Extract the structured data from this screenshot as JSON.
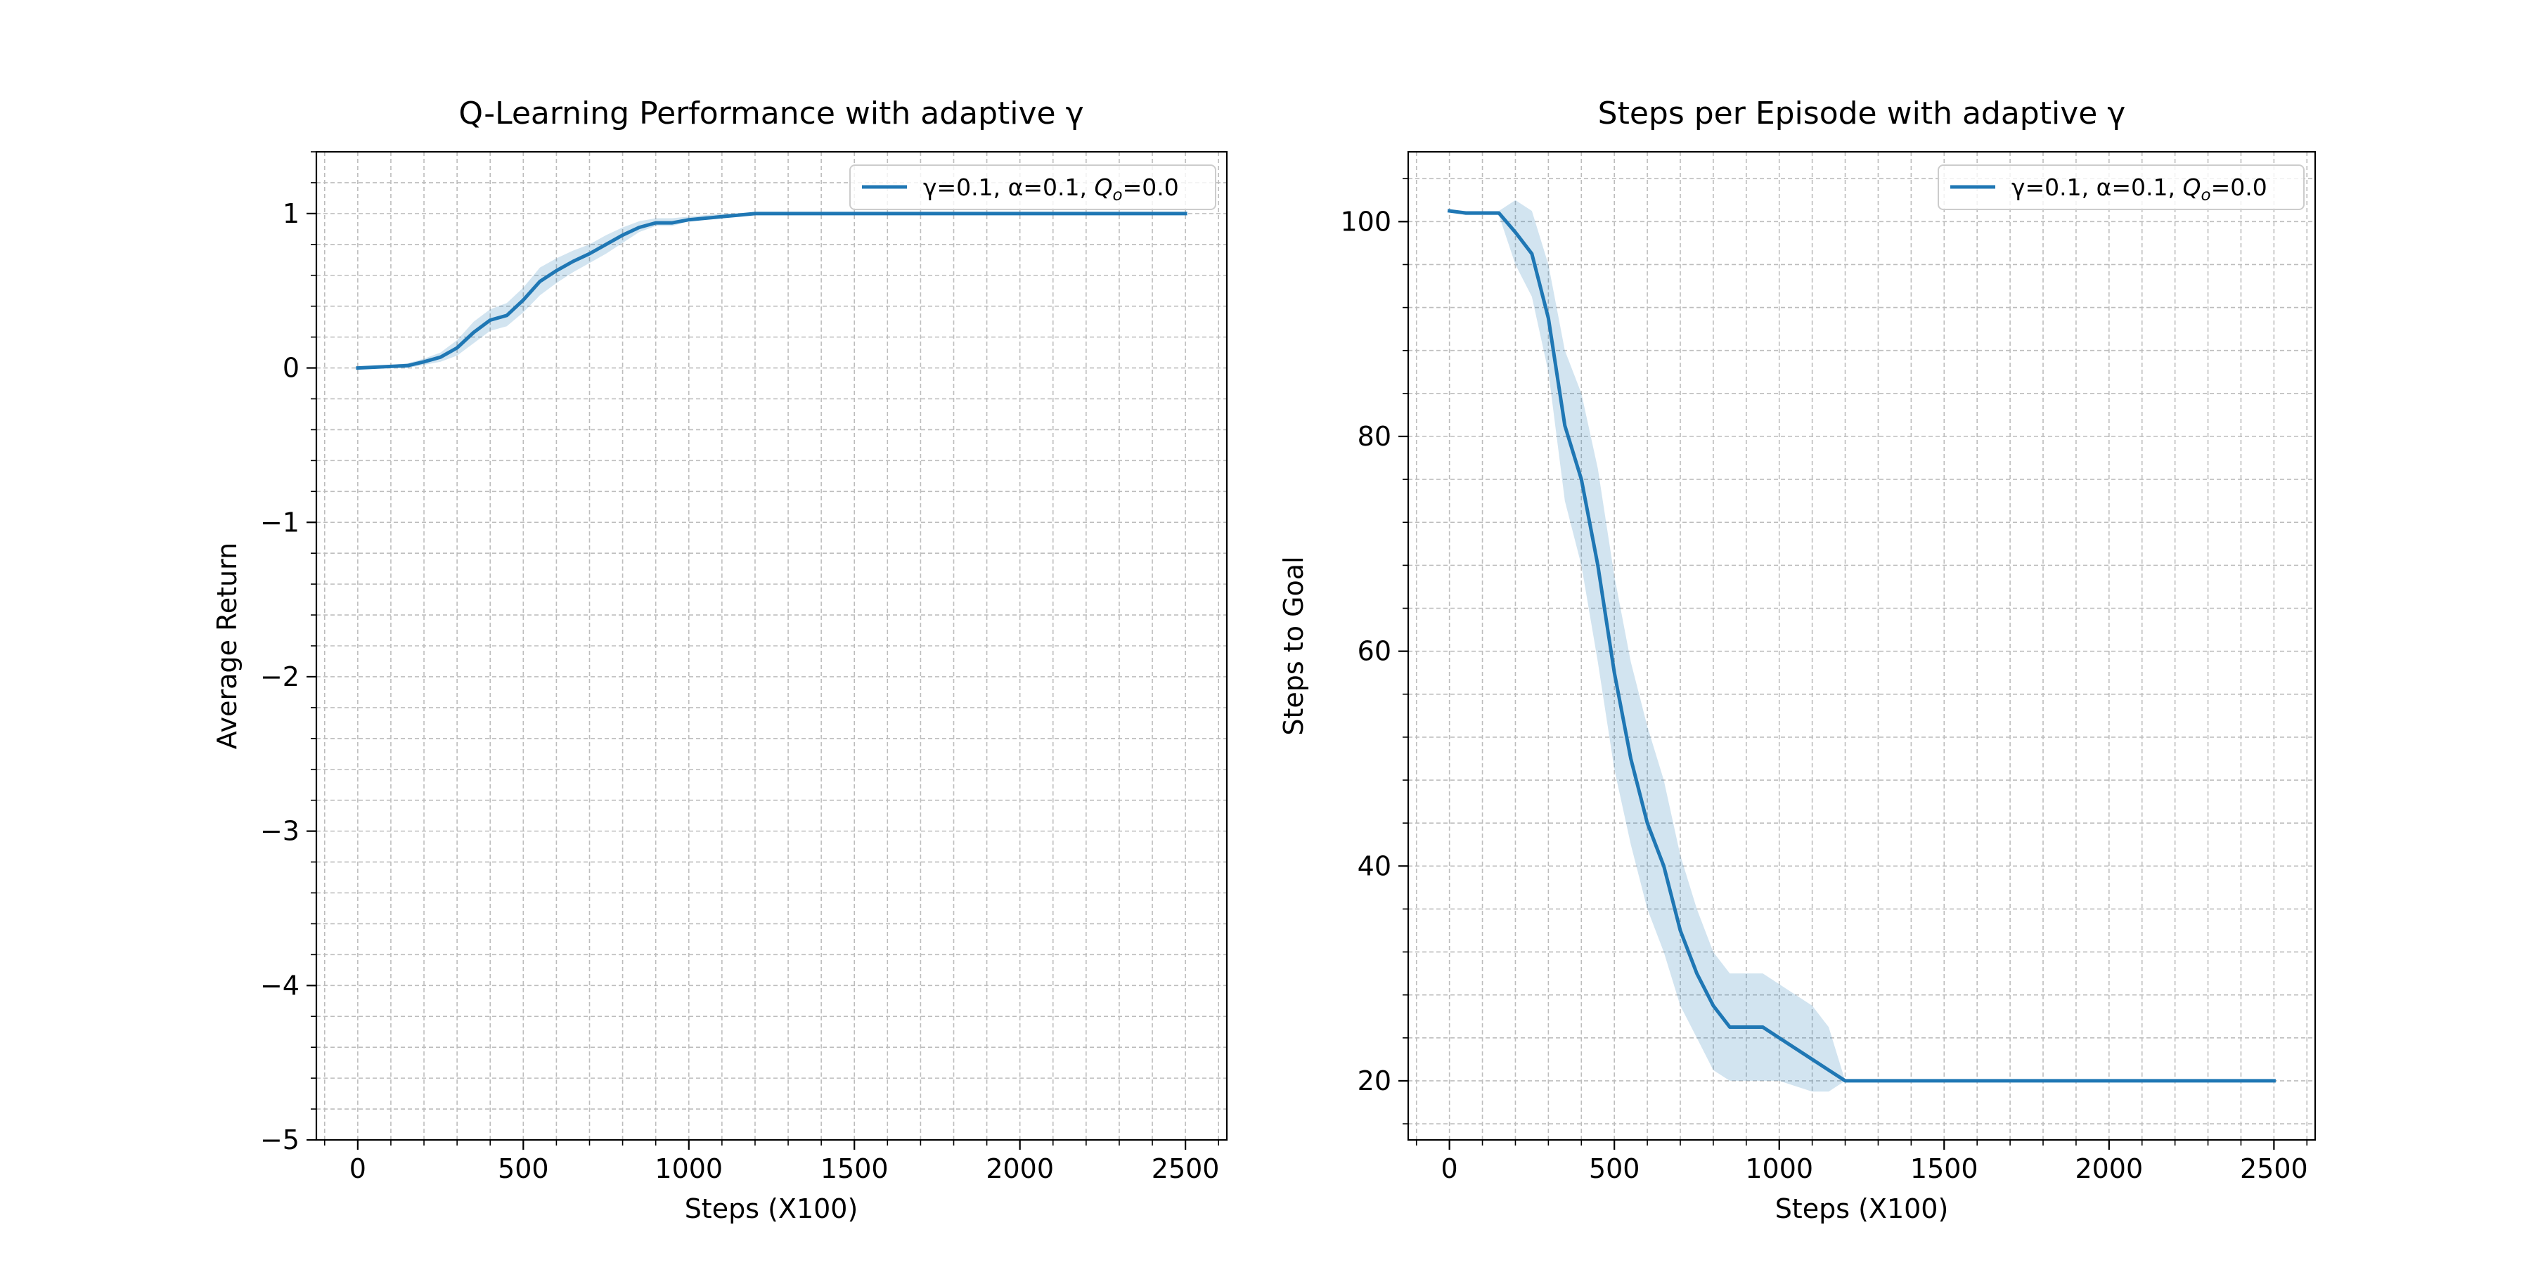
{
  "chart_data": [
    {
      "type": "line",
      "title": "Q-Learning Performance with adaptive γ",
      "xlabel": "Steps (X100)",
      "ylabel": "Average Return",
      "xlim": [
        -125,
        2625
      ],
      "ylim": [
        -5,
        1.4
      ],
      "xticks": [
        0,
        500,
        1000,
        1500,
        2000,
        2500
      ],
      "xtick_labels": [
        "0",
        "500",
        "1000",
        "1500",
        "2000",
        "2500"
      ],
      "yticks": [
        -5,
        -4,
        -3,
        -2,
        -1,
        0,
        1
      ],
      "ytick_labels": [
        "−5",
        "−4",
        "−3",
        "−2",
        "−1",
        "0",
        "1"
      ],
      "grid": true,
      "minor_grid": true,
      "legend_position": "top-right",
      "color": "#1f77b4",
      "band_color": "#1f77b4",
      "band_opacity": 0.2,
      "series": [
        {
          "name": "γ=0.1, α=0.1, Q_o=0.0",
          "legend_main": "γ=0.1, α=0.1, ",
          "legend_q": "Q",
          "legend_sub": "o",
          "legend_tail": "=0.0",
          "x": [
            0,
            50,
            100,
            150,
            200,
            250,
            300,
            350,
            400,
            450,
            500,
            550,
            600,
            650,
            700,
            750,
            800,
            850,
            900,
            950,
            1000,
            1050,
            1100,
            1150,
            1200,
            1300,
            1500,
            2000,
            2500
          ],
          "y": [
            0.0,
            0.005,
            0.01,
            0.015,
            0.04,
            0.07,
            0.13,
            0.23,
            0.31,
            0.34,
            0.44,
            0.56,
            0.63,
            0.69,
            0.74,
            0.8,
            0.86,
            0.91,
            0.94,
            0.94,
            0.96,
            0.97,
            0.98,
            0.99,
            1.0,
            1.0,
            1.0,
            1.0,
            1.0
          ],
          "lower": [
            0.0,
            0.0,
            0.0,
            0.0,
            0.02,
            0.04,
            0.08,
            0.16,
            0.24,
            0.27,
            0.36,
            0.47,
            0.55,
            0.62,
            0.68,
            0.74,
            0.81,
            0.88,
            0.92,
            0.92,
            0.95,
            0.96,
            0.97,
            0.98,
            1.0,
            1.0,
            1.0,
            1.0,
            1.0
          ],
          "upper": [
            0.0,
            0.01,
            0.02,
            0.03,
            0.06,
            0.1,
            0.18,
            0.3,
            0.38,
            0.42,
            0.52,
            0.65,
            0.71,
            0.76,
            0.8,
            0.86,
            0.91,
            0.95,
            0.97,
            0.97,
            0.98,
            0.99,
            1.0,
            1.0,
            1.0,
            1.0,
            1.0,
            1.0,
            1.0
          ]
        }
      ]
    },
    {
      "type": "line",
      "title": "Steps per Episode with adaptive γ",
      "xlabel": "Steps (X100)",
      "ylabel": "Steps to Goal",
      "xlim": [
        -125,
        2625
      ],
      "ylim": [
        14.5,
        106.5
      ],
      "xticks": [
        0,
        500,
        1000,
        1500,
        2000,
        2500
      ],
      "xtick_labels": [
        "0",
        "500",
        "1000",
        "1500",
        "2000",
        "2500"
      ],
      "yticks": [
        20,
        40,
        60,
        80,
        100
      ],
      "ytick_labels": [
        "20",
        "40",
        "60",
        "80",
        "100"
      ],
      "grid": true,
      "minor_grid": true,
      "legend_position": "top-right",
      "color": "#1f77b4",
      "band_color": "#1f77b4",
      "band_opacity": 0.2,
      "series": [
        {
          "name": "γ=0.1, α=0.1, Q_o=0.0",
          "legend_main": "γ=0.1, α=0.1, ",
          "legend_q": "Q",
          "legend_sub": "o",
          "legend_tail": "=0.0",
          "x": [
            0,
            50,
            100,
            150,
            200,
            250,
            300,
            350,
            400,
            450,
            500,
            550,
            600,
            650,
            700,
            750,
            800,
            850,
            900,
            950,
            1000,
            1050,
            1100,
            1150,
            1200,
            1300,
            1500,
            2000,
            2500
          ],
          "y": [
            101,
            100.8,
            100.8,
            100.8,
            99,
            97,
            91,
            81,
            76,
            68,
            58,
            50,
            44,
            40,
            34,
            30,
            27,
            25,
            25,
            25,
            24,
            23,
            22,
            21,
            20,
            20,
            20,
            20,
            20
          ],
          "lower": [
            101,
            100.6,
            100.6,
            100.6,
            96,
            93,
            86,
            74,
            68,
            59,
            49,
            42,
            36,
            32,
            27,
            24,
            21,
            20,
            20,
            20,
            20,
            19.5,
            19,
            19,
            20,
            20,
            20,
            20,
            20
          ],
          "upper": [
            101,
            101,
            101,
            101,
            102,
            101,
            96,
            88,
            84,
            77,
            67,
            59,
            53,
            48,
            41,
            36,
            32,
            30,
            30,
            30,
            29,
            28,
            27,
            25,
            20,
            20,
            20,
            20,
            20
          ]
        }
      ]
    }
  ]
}
